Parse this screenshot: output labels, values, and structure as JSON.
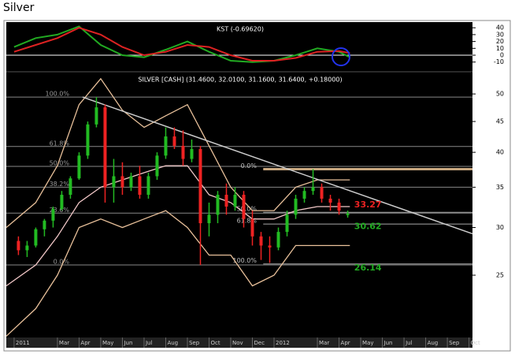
{
  "title": "Silver",
  "chart_data": [
    {
      "type": "line",
      "title": "KST (-0.69620)",
      "x": [
        0,
        1,
        2,
        3,
        4,
        5,
        6,
        7,
        8,
        9,
        10,
        11,
        12,
        13,
        14,
        15,
        15.5
      ],
      "series": [
        {
          "color": "#22aa22",
          "values": [
            12,
            25,
            30,
            42,
            15,
            0,
            -3,
            8,
            20,
            5,
            -8,
            -10,
            -8,
            0,
            10,
            5,
            -3
          ]
        },
        {
          "color": "#dd2222",
          "values": [
            5,
            15,
            25,
            40,
            30,
            12,
            0,
            5,
            15,
            12,
            0,
            -8,
            -8,
            -4,
            5,
            6,
            3
          ]
        }
      ],
      "ylim": [
        -23,
        46
      ],
      "yticks": [
        40,
        30,
        20,
        10,
        0,
        -10
      ],
      "reference_line": 0
    },
    {
      "type": "candlestick",
      "title": "SILVER [CASH] (31.4600, 32.0100, 31.1600, 31.6400, +0.18000)",
      "x": [
        0.2,
        0.6,
        1.0,
        1.4,
        1.8,
        2.2,
        2.6,
        3.0,
        3.4,
        3.8,
        4.2,
        4.6,
        5.0,
        5.4,
        5.8,
        6.2,
        6.6,
        7.0,
        7.4,
        7.8,
        8.2,
        8.6,
        9.0,
        9.4,
        9.8,
        10.2,
        10.6,
        11.0,
        11.4,
        11.8,
        12.2,
        12.6,
        13.0,
        13.4,
        13.8,
        14.2,
        14.6,
        15.0,
        15.4
      ],
      "open": [
        28.5,
        27.5,
        28,
        29.8,
        30.8,
        32.2,
        34,
        36.2,
        39.5,
        44.5,
        47.5,
        35,
        36.5,
        35,
        36.5,
        34,
        36.5,
        39.5,
        42.5,
        41,
        39,
        40.5,
        30.5,
        31.5,
        34,
        32.5,
        34,
        31,
        29,
        28,
        27.8,
        29.5,
        31.5,
        33.5,
        34.5,
        35,
        33.5,
        33,
        31.46
      ],
      "high": [
        29,
        28.5,
        30,
        31,
        32.5,
        34.5,
        36.5,
        40,
        45,
        49.4,
        48,
        39,
        38.5,
        37,
        38,
        37,
        40,
        44,
        44,
        43.5,
        42,
        41,
        33,
        34.5,
        35.5,
        35,
        34.5,
        32,
        29.5,
        29,
        30,
        32,
        34,
        35,
        37.5,
        35.5,
        34,
        33.5,
        32.01
      ],
      "low": [
        27,
        26.8,
        27.8,
        29,
        30,
        32,
        33.5,
        36,
        39,
        44,
        33,
        33,
        34,
        34.5,
        33.5,
        33.5,
        36,
        39,
        40.5,
        38,
        38.5,
        26,
        29,
        30.5,
        31.5,
        32,
        30,
        28,
        26.5,
        26.2,
        27.5,
        29,
        31,
        33,
        34,
        33,
        32,
        31.5,
        31.16
      ],
      "close": [
        27.5,
        28,
        29.8,
        30.8,
        32.2,
        34,
        36.2,
        39.5,
        44.5,
        47.5,
        35,
        36.5,
        35,
        36.5,
        34,
        36.5,
        39.5,
        42.5,
        41,
        39,
        40.5,
        30.5,
        31.5,
        34,
        32.5,
        34,
        31,
        29,
        28,
        27.8,
        29.5,
        31.5,
        33.5,
        34.5,
        35,
        33.5,
        33,
        32,
        31.64
      ],
      "up_color": "#22bb22",
      "down_color": "#ee2222",
      "log_scale": true,
      "ylim": [
        19.7,
        54.1
      ],
      "yticks": [
        50,
        45,
        40,
        35,
        30,
        25
      ],
      "xlim": [
        -0.36,
        21.16
      ],
      "xticks": [
        {
          "value": 0,
          "label": "2011"
        },
        {
          "value": 2,
          "label": "Mar"
        },
        {
          "value": 3,
          "label": "Apr"
        },
        {
          "value": 4,
          "label": "May"
        },
        {
          "value": 5,
          "label": "Jun"
        },
        {
          "value": 6,
          "label": "Jul"
        },
        {
          "value": 7,
          "label": "Aug"
        },
        {
          "value": 8,
          "label": "Sep"
        },
        {
          "value": 9,
          "label": "Oct"
        },
        {
          "value": 10,
          "label": "Nov"
        },
        {
          "value": 11,
          "label": "Dec"
        },
        {
          "value": 12,
          "label": "2012"
        },
        {
          "value": 14,
          "label": "Mar"
        },
        {
          "value": 15,
          "label": "Apr"
        },
        {
          "value": 16,
          "label": "May"
        },
        {
          "value": 17,
          "label": "Jun"
        },
        {
          "value": 18,
          "label": "Jul"
        },
        {
          "value": 19,
          "label": "Aug"
        },
        {
          "value": 20,
          "label": "Sep"
        },
        {
          "value": 21,
          "label": "Oct"
        }
      ],
      "bands": {
        "x": [
          -0.36,
          1,
          2,
          3,
          4,
          5,
          6,
          7,
          8,
          9,
          10,
          11,
          12,
          13,
          14,
          15,
          15.5
        ],
        "series": [
          {
            "color": "#e8c09a",
            "values": [
              30,
              33,
              38,
              48,
              53,
              47,
              44,
              46,
              48,
              41,
              35,
              32,
              32,
              35,
              36,
              36,
              36
            ]
          },
          {
            "color": "#f2c8c8",
            "values": [
              24,
              26,
              29,
              33,
              35,
              36,
              37,
              38,
              38,
              34,
              33,
              31,
              31,
              32,
              32.5,
              32.5,
              32.5
            ]
          },
          {
            "color": "#e8c09a",
            "values": [
              19.8,
              22,
              25,
              30,
              31,
              30,
              31,
              32,
              30,
              27,
              27,
              24,
              25,
              28,
              28,
              28,
              28
            ]
          }
        ]
      },
      "trend_line": {
        "x": [
          3.16,
          21.16
        ],
        "values": [
          49.4,
          29.3
        ],
        "color": "#cccccc"
      },
      "fib_levels": [
        {
          "label": "100.0%",
          "value": 49.4
        },
        {
          "label": "61.8%",
          "value": 40.9
        },
        {
          "label": "50.0%",
          "value": 37.9
        },
        {
          "label": "38.2%",
          "value": 35.0
        },
        {
          "label": "23.6%",
          "value": 31.7
        },
        {
          "label": "0.0%",
          "value": 26.0
        }
      ],
      "fib_levels_2": [
        {
          "label": "0.0%",
          "value": 37.5
        },
        {
          "label": "50.0%",
          "value": 31.8
        },
        {
          "label": "61.8%",
          "value": 30.4
        },
        {
          "label": "100.0%",
          "value": 26.1
        }
      ],
      "annotations": [
        {
          "value": 33.27,
          "color": "#ee2222"
        },
        {
          "value": 30.62,
          "color": "#22aa22"
        },
        {
          "value": 26.14,
          "color": "#22aa22"
        }
      ]
    }
  ]
}
